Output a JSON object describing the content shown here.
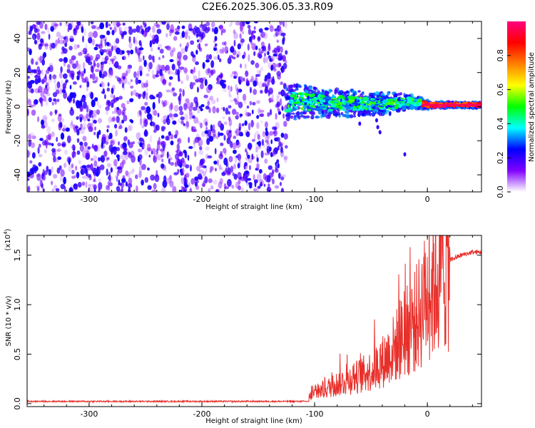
{
  "title": "C2E6.2025.306.05.33.R09",
  "chart_data": [
    {
      "type": "heatmap",
      "name": "spectrogram",
      "xlabel": "Height of straight line (km)",
      "ylabel": "Frequency (Hz)",
      "xlim": [
        -355,
        48
      ],
      "ylim": [
        -50,
        50
      ],
      "xticks": [
        -300,
        -200,
        -100,
        0
      ],
      "yticks": [
        -40,
        -20,
        0,
        20,
        40
      ],
      "noise_region_x": [
        -355,
        -125
      ],
      "signal_track": {
        "x": [
          -125,
          -110,
          -90,
          -70,
          -50,
          -30,
          -15,
          -5,
          0,
          10,
          20,
          30,
          40,
          48
        ],
        "center_freq": [
          3,
          3,
          2,
          2,
          1.5,
          2,
          3,
          2,
          1,
          1,
          1,
          1,
          1,
          1
        ],
        "spread": [
          7,
          6,
          5,
          5,
          4,
          4,
          2.5,
          2,
          1.5,
          1,
          1,
          1,
          1,
          1
        ]
      },
      "colorbar": {
        "label": "Normalized spectral amplitude",
        "range": [
          0,
          1
        ],
        "ticks": [
          0.0,
          0.2,
          0.4,
          0.6,
          0.8
        ],
        "tick_labels": [
          "0.0",
          "0.2",
          "0.4",
          "0.6",
          "0.8"
        ],
        "colormap": [
          "#ffffff",
          "#8000ff",
          "#0000ff",
          "#00ffff",
          "#00ff00",
          "#ffff00",
          "#ff8000",
          "#ff0000",
          "#ff0080"
        ]
      }
    },
    {
      "type": "line",
      "name": "snr",
      "xlabel": "Height of straight line (km)",
      "ylabel": "SNR (10 * v/v)",
      "scale_label": "(x10",
      "scale_exponent": "4",
      "xlim": [
        -355,
        48
      ],
      "ylim": [
        -0.03,
        1.7
      ],
      "xticks": [
        -300,
        -200,
        -100,
        0
      ],
      "yticks": [
        0.0,
        0.5,
        1.0,
        1.5
      ],
      "ytick_labels": [
        "0.0",
        "0.5",
        "1.0",
        "1.5"
      ],
      "color": "#e8302b",
      "series": [
        {
          "name": "SNR",
          "x": [
            -355,
            -300,
            -200,
            -130,
            -110,
            -100,
            -90,
            -80,
            -70,
            -60,
            -50,
            -40,
            -30,
            -20,
            -10,
            0,
            10,
            20,
            30,
            40,
            48
          ],
          "y": [
            0.02,
            0.02,
            0.02,
            0.02,
            0.04,
            0.1,
            0.15,
            0.2,
            0.24,
            0.28,
            0.33,
            0.42,
            0.55,
            0.7,
            0.85,
            1.1,
            1.3,
            1.45,
            1.5,
            1.53,
            1.53
          ]
        }
      ]
    }
  ]
}
